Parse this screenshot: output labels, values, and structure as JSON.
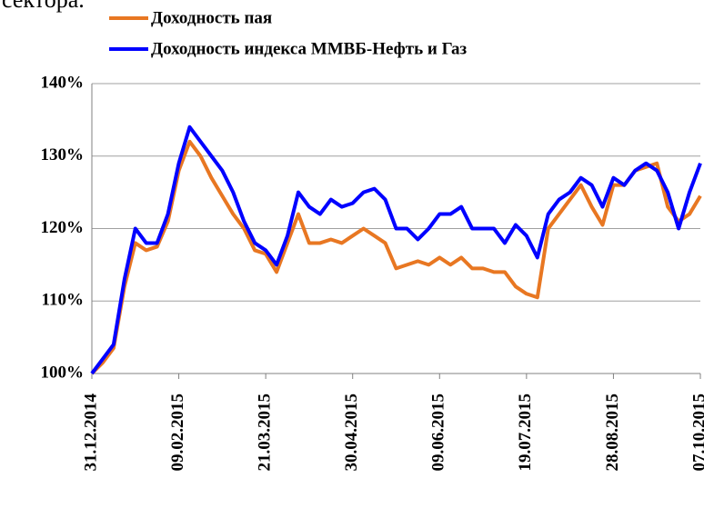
{
  "chart_data": {
    "type": "line",
    "heading": "сектора.",
    "categories": [
      "31.12.2014",
      null,
      null,
      null,
      null,
      null,
      null,
      null,
      "09.02.2015",
      null,
      null,
      null,
      null,
      null,
      null,
      null,
      "21.03.2015",
      null,
      null,
      null,
      null,
      null,
      null,
      null,
      "30.04.2015",
      null,
      null,
      null,
      null,
      null,
      null,
      null,
      "09.06.2015",
      null,
      null,
      null,
      null,
      null,
      null,
      null,
      "19.07.2015",
      null,
      null,
      null,
      null,
      null,
      null,
      null,
      "28.08.2015",
      null,
      null,
      null,
      null,
      null,
      null,
      null,
      "07.10.2015"
    ],
    "series": [
      {
        "name": "Доходность пая",
        "color": "#e87722",
        "values": [
          100,
          101.5,
          103.5,
          112,
          118,
          117,
          117.5,
          121,
          128,
          132,
          130,
          127,
          124.5,
          122,
          120,
          117,
          116.5,
          114,
          118,
          122,
          118,
          118,
          118.5,
          118,
          119,
          120,
          119,
          118,
          114.5,
          115,
          115.5,
          115,
          116,
          115,
          116,
          114.5,
          114.5,
          114,
          114,
          112,
          111,
          110.5,
          120,
          122,
          124,
          126,
          123,
          120.5,
          126,
          126,
          128,
          128.5,
          129,
          123,
          121,
          122,
          124.5
        ]
      },
      {
        "name": "Доходность индекса ММВБ-Нефть и Газ",
        "color": "#0000ff",
        "values": [
          100,
          102,
          104,
          113,
          120,
          118,
          118,
          122,
          129,
          134,
          132,
          130,
          128,
          125,
          121,
          118,
          117,
          115,
          119,
          125,
          123,
          122,
          124,
          123,
          123.5,
          125,
          125.5,
          124,
          120,
          120,
          118.5,
          120,
          122,
          122,
          123,
          120,
          120,
          120,
          118,
          120.5,
          119,
          116,
          122,
          124,
          125,
          127,
          126,
          123,
          127,
          126,
          128,
          129,
          128,
          125,
          120,
          125,
          129
        ]
      }
    ],
    "ylim": [
      100,
      140
    ],
    "yticks": [
      {
        "value": 100,
        "label": "100%"
      },
      {
        "value": 110,
        "label": "110%"
      },
      {
        "value": 120,
        "label": "120%"
      },
      {
        "value": 130,
        "label": "130%"
      },
      {
        "value": 140,
        "label": "140%"
      }
    ],
    "grid": true
  }
}
